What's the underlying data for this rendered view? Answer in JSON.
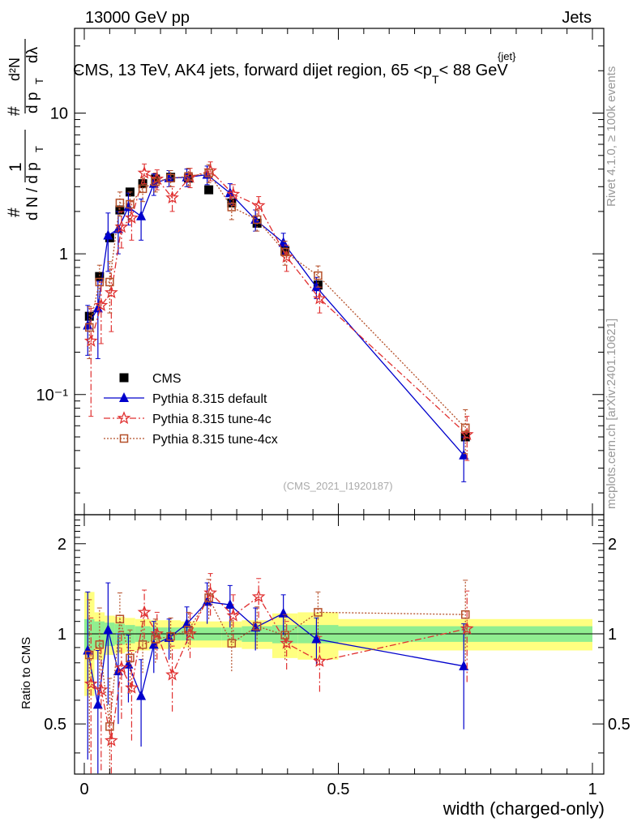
{
  "header": {
    "left": "13000 GeV pp",
    "right": "Jets"
  },
  "title": "CMS, 13 TeV, AK4 jets, forward dijet region, 65 <p",
  "title_sub": "T",
  "title_sup": "{jet}",
  "title_end": "< 88 GeV",
  "side_top": "Rivet 4.1.0, ≥ 100k events",
  "side_bottom": "mcplots.cern.ch [arXiv:2401.10621]",
  "analysis_id": "(CMS_2021_I1920187)",
  "ylabel_main": {
    "hash": "#",
    "one": "1",
    "dN": "d N / d p",
    "sub": "T",
    "d2N": "d²N",
    "dpT": "d p",
    "dlambda": "dλ"
  },
  "chart_data": [
    {
      "type": "scatter",
      "title": "CMS, 13 TeV, AK4 jets, forward dijet region, 65 <p_T^{jet}< 88 GeV",
      "xlabel": "width (charged-only)",
      "ylabel": "1/dN/dpT d²N/dpT dλ",
      "xlim": [
        -0.02,
        1.0
      ],
      "ylim": [
        0.014,
        40
      ],
      "yscale": "log",
      "yticklabels": [
        "10⁻¹",
        "1",
        "10"
      ],
      "yticks": [
        0.1,
        1,
        10
      ],
      "legend_position": "middle-left",
      "x": [
        0.01,
        0.03,
        0.05,
        0.07,
        0.09,
        0.115,
        0.14,
        0.17,
        0.205,
        0.245,
        0.29,
        0.34,
        0.395,
        0.46,
        0.75
      ],
      "series": [
        {
          "name": "CMS",
          "marker": "square",
          "color": "#000000",
          "values": [
            0.36,
            0.69,
            1.3,
            2.05,
            2.75,
            3.15,
            3.4,
            3.5,
            3.45,
            2.85,
            2.3,
            1.65,
            1.05,
            0.6,
            0.05
          ]
        },
        {
          "name": "Pythia 8.315 default",
          "marker": "triangle",
          "color": "#0000cc",
          "line": "solid",
          "values": [
            0.31,
            0.41,
            1.35,
            1.5,
            2.15,
            1.85,
            3.15,
            3.45,
            3.5,
            3.65,
            2.7,
            1.75,
            1.2,
            0.58,
            0.037
          ],
          "err_low": [
            0.12,
            0.23,
            0.6,
            0.5,
            0.55,
            0.6,
            0.55,
            0.45,
            0.5,
            0.55,
            0.45,
            0.3,
            0.2,
            0.1,
            0.013
          ],
          "err_high": [
            0.12,
            0.23,
            0.6,
            0.5,
            0.55,
            0.6,
            0.55,
            0.45,
            0.5,
            0.55,
            0.45,
            0.3,
            0.2,
            0.1,
            0.013
          ]
        },
        {
          "name": "Pythia 8.315 tune-4c",
          "marker": "star",
          "color": "#e03030",
          "line": "dashdot",
          "values": [
            0.24,
            0.43,
            0.53,
            1.55,
            1.8,
            3.75,
            3.4,
            2.5,
            3.5,
            3.9,
            2.65,
            2.2,
            0.95,
            0.48,
            0.052
          ],
          "err_low": [
            0.17,
            0.2,
            0.25,
            0.45,
            0.55,
            0.6,
            0.55,
            0.5,
            0.55,
            0.6,
            0.45,
            0.35,
            0.2,
            0.1,
            0.018
          ],
          "err_high": [
            0.17,
            0.2,
            0.25,
            0.45,
            0.55,
            0.6,
            0.55,
            0.5,
            0.55,
            0.6,
            0.45,
            0.35,
            0.2,
            0.1,
            0.018
          ]
        },
        {
          "name": "Pythia 8.315 tune-4cx",
          "marker": "open-square",
          "color": "#b5502a",
          "line": "dotted",
          "values": [
            0.3,
            0.63,
            0.63,
            2.3,
            2.25,
            2.9,
            3.25,
            3.45,
            3.55,
            3.75,
            2.15,
            1.75,
            1.03,
            0.7,
            0.058
          ],
          "err_low": [
            0.12,
            0.2,
            0.25,
            0.45,
            0.5,
            0.55,
            0.5,
            0.45,
            0.5,
            0.55,
            0.4,
            0.3,
            0.2,
            0.12,
            0.02
          ],
          "err_high": [
            0.12,
            0.2,
            0.25,
            0.45,
            0.5,
            0.55,
            0.5,
            0.45,
            0.5,
            0.55,
            0.4,
            0.3,
            0.2,
            0.12,
            0.02
          ]
        }
      ]
    },
    {
      "type": "scatter",
      "xlabel": "width (charged-only)",
      "ylabel": "Ratio to CMS",
      "xlim": [
        -0.02,
        1.0
      ],
      "ylim": [
        0.34,
        2.5
      ],
      "yticks": [
        0.5,
        1,
        2
      ],
      "yticklabels": [
        "0.5",
        "1",
        "2"
      ],
      "xticks": [
        0,
        0.5,
        1
      ],
      "xticklabels": [
        "0",
        "0.5",
        "1"
      ],
      "bands": {
        "bin_edges": [
          0.0,
          0.02,
          0.04,
          0.06,
          0.08,
          0.1,
          0.13,
          0.15,
          0.19,
          0.22,
          0.27,
          0.31,
          0.37,
          0.42,
          0.5,
          1.0
        ],
        "stat_lo": [
          0.88,
          0.9,
          0.91,
          0.92,
          0.93,
          0.94,
          0.95,
          0.95,
          0.95,
          0.95,
          0.95,
          0.94,
          0.93,
          0.93,
          0.94
        ],
        "stat_hi": [
          1.12,
          1.1,
          1.09,
          1.08,
          1.07,
          1.06,
          1.05,
          1.05,
          1.05,
          1.05,
          1.05,
          1.06,
          1.07,
          1.07,
          1.06
        ],
        "total_lo": [
          0.62,
          0.82,
          0.85,
          0.86,
          0.87,
          0.88,
          0.89,
          0.89,
          0.9,
          0.9,
          0.9,
          0.89,
          0.83,
          0.82,
          0.88
        ],
        "total_hi": [
          1.38,
          1.18,
          1.15,
          1.14,
          1.13,
          1.12,
          1.11,
          1.11,
          1.1,
          1.1,
          1.1,
          1.11,
          1.17,
          1.18,
          1.12
        ]
      },
      "series": [
        {
          "name": "Pythia 8.315 default",
          "values": [
            0.88,
            0.58,
            1.03,
            0.75,
            0.79,
            0.62,
            0.92,
            0.97,
            1.08,
            1.28,
            1.25,
            1.05,
            1.17,
            0.96,
            0.78
          ],
          "err": [
            0.5,
            0.3,
            0.45,
            0.25,
            0.2,
            0.2,
            0.18,
            0.15,
            0.15,
            0.2,
            0.2,
            0.17,
            0.18,
            0.17,
            0.3
          ]
        },
        {
          "name": "Pythia 8.315 tune-4c",
          "values": [
            0.68,
            0.65,
            0.44,
            0.77,
            0.66,
            1.18,
            1.0,
            0.73,
            1.0,
            1.37,
            1.15,
            1.33,
            0.93,
            0.81,
            1.04
          ],
          "err": [
            0.45,
            0.3,
            0.2,
            0.25,
            0.22,
            0.22,
            0.18,
            0.18,
            0.17,
            0.22,
            0.2,
            0.2,
            0.17,
            0.17,
            0.35
          ]
        },
        {
          "name": "Pythia 8.315 tune-4cx",
          "values": [
            0.85,
            0.92,
            0.49,
            1.12,
            0.83,
            0.92,
            0.96,
            0.98,
            1.03,
            1.32,
            0.93,
            1.06,
            0.99,
            1.18,
            1.16
          ],
          "err": [
            0.45,
            0.3,
            0.22,
            0.25,
            0.2,
            0.18,
            0.16,
            0.15,
            0.15,
            0.2,
            0.18,
            0.17,
            0.17,
            0.2,
            0.35
          ]
        }
      ]
    }
  ]
}
